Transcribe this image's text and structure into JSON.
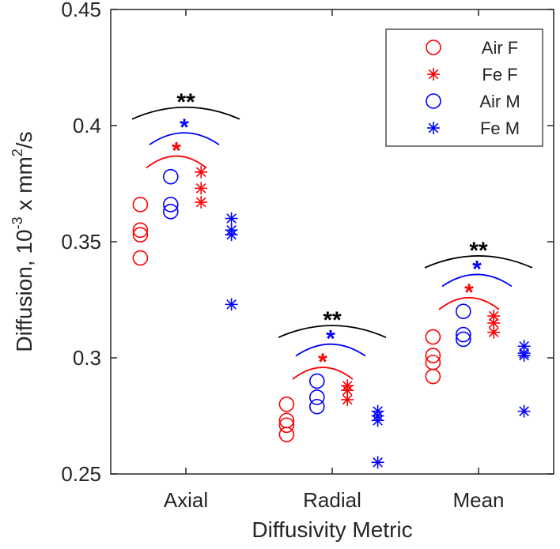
{
  "chart_data": {
    "type": "scatter",
    "title": "",
    "xlabel": "Diffusivity Metric",
    "ylabel_prefix": "Diffusion, 10",
    "ylabel_exp1": "-3",
    "ylabel_mid": " x mm",
    "ylabel_exp2": "2",
    "ylabel_suffix": "/s",
    "ylim": [
      0.25,
      0.45
    ],
    "yticks": [
      0.25,
      0.3,
      0.35,
      0.4,
      0.45
    ],
    "ytick_labels": [
      "0.25",
      "0.3",
      "0.35",
      "0.4",
      "0.45"
    ],
    "categories": [
      "Axial",
      "Radial",
      "Mean"
    ],
    "legend_position": "top-right",
    "colors": {
      "F": "#ff0000",
      "M": "#0000ff",
      "sig_all": "#000000"
    },
    "series": [
      {
        "name": "Air F",
        "marker": "circle",
        "color": "#ff0000",
        "offset": -0.45,
        "values": [
          [
            0.366,
            0.355,
            0.353,
            0.343
          ],
          [
            0.28,
            0.273,
            0.271,
            0.267
          ],
          [
            0.309,
            0.301,
            0.298,
            0.292
          ]
        ]
      },
      {
        "name": "Fe F",
        "marker": "asterisk",
        "color": "#ff0000",
        "offset": 0.15,
        "values": [
          [
            0.38,
            0.373,
            0.367
          ],
          [
            0.288,
            0.286,
            0.282
          ],
          [
            0.318,
            0.315,
            0.311
          ]
        ]
      },
      {
        "name": "Air M",
        "marker": "circle",
        "color": "#0000ff",
        "offset": -0.15,
        "values": [
          [
            0.378,
            0.366,
            0.363
          ],
          [
            0.29,
            0.283,
            0.279
          ],
          [
            0.32,
            0.31,
            0.308
          ]
        ]
      },
      {
        "name": "Fe M",
        "marker": "asterisk",
        "color": "#0000ff",
        "offset": 0.45,
        "values": [
          [
            0.36,
            0.355,
            0.353,
            0.323
          ],
          [
            0.277,
            0.275,
            0.273,
            0.255
          ],
          [
            0.305,
            0.302,
            0.301,
            0.277
          ]
        ]
      }
    ],
    "significance": [
      {
        "category": "Axial",
        "level": "all",
        "label": "**",
        "y": 0.413
      },
      {
        "category": "Axial",
        "level": "M",
        "label": "*",
        "y": 0.402
      },
      {
        "category": "Axial",
        "level": "F",
        "label": "*",
        "y": 0.392
      },
      {
        "category": "Radial",
        "level": "all",
        "label": "**",
        "y": 0.319
      },
      {
        "category": "Radial",
        "level": "M",
        "label": "*",
        "y": 0.311
      },
      {
        "category": "Radial",
        "level": "F",
        "label": "*",
        "y": 0.301
      },
      {
        "category": "Mean",
        "level": "all",
        "label": "**",
        "y": 0.349
      },
      {
        "category": "Mean",
        "level": "M",
        "label": "*",
        "y": 0.341
      },
      {
        "category": "Mean",
        "level": "F",
        "label": "*",
        "y": 0.331
      }
    ]
  }
}
